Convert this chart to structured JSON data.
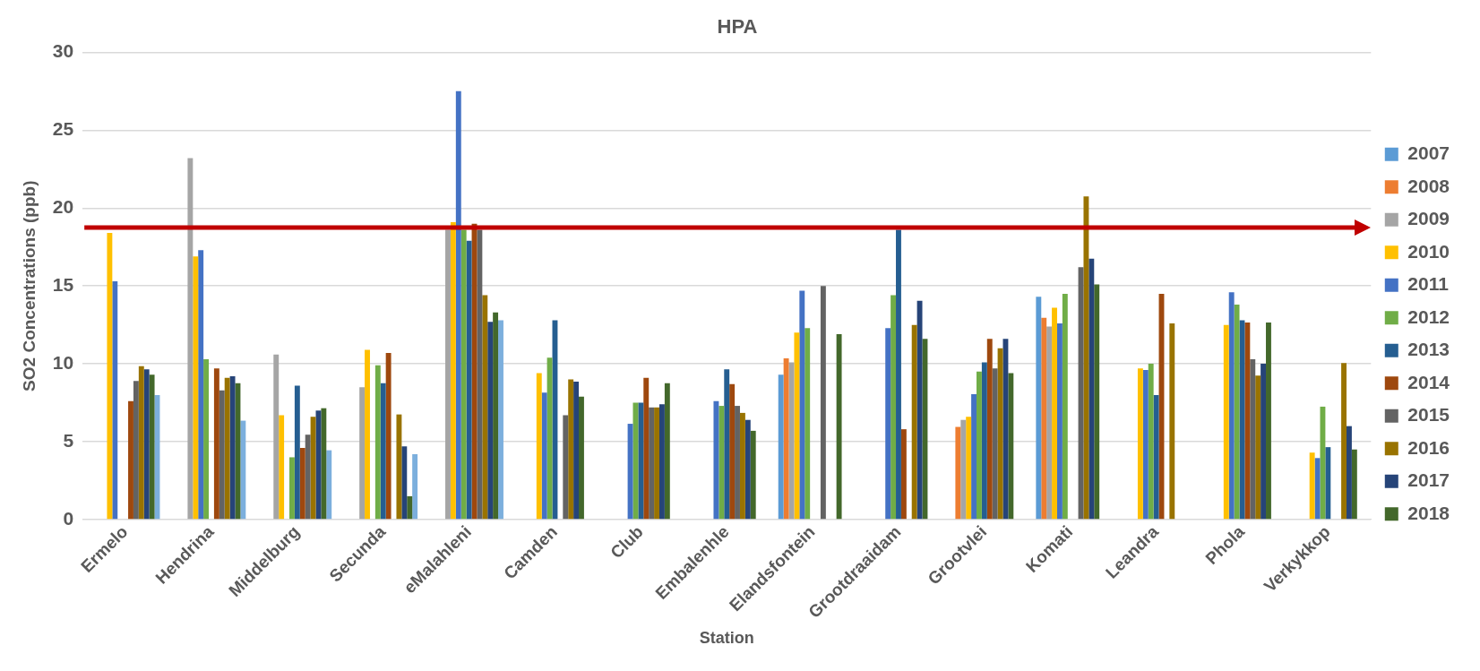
{
  "chart_data": {
    "type": "bar",
    "title": "HPA",
    "xlabel": "Station",
    "ylabel": "SO2 Concentrations (ppb)",
    "categories": [
      "Ermelo",
      "Hendrina",
      "Middelburg",
      "Secunda",
      "eMalahleni",
      "Camden",
      "Club",
      "Embalenhle",
      "Elandsfontein",
      "Grootdraaidam",
      "Grootvlei",
      "Komati",
      "Leandra",
      "Phola",
      "Verkykkop"
    ],
    "series": [
      {
        "name": "2007",
        "color": "#5b9bd5",
        "values": [
          null,
          null,
          null,
          null,
          null,
          null,
          null,
          null,
          9.3,
          null,
          null,
          14.3,
          null,
          null,
          null
        ]
      },
      {
        "name": "2008",
        "color": "#ed7d31",
        "values": [
          null,
          null,
          null,
          null,
          null,
          null,
          null,
          null,
          10.35,
          null,
          5.95,
          12.95,
          null,
          null,
          null
        ]
      },
      {
        "name": "2009",
        "color": "#a5a5a5",
        "values": [
          null,
          23.2,
          10.6,
          8.5,
          18.6,
          null,
          null,
          null,
          10.1,
          null,
          6.4,
          12.4,
          null,
          null,
          null
        ]
      },
      {
        "name": "2010",
        "color": "#ffc000",
        "values": [
          18.4,
          16.9,
          6.7,
          10.9,
          19.1,
          9.4,
          null,
          null,
          12.0,
          null,
          6.6,
          13.6,
          9.7,
          12.5,
          4.3
        ]
      },
      {
        "name": "2011",
        "color": "#4472c4",
        "values": [
          15.3,
          17.3,
          null,
          null,
          27.5,
          8.15,
          6.15,
          7.6,
          14.7,
          12.3,
          8.05,
          12.6,
          9.6,
          14.6,
          3.95
        ]
      },
      {
        "name": "2012",
        "color": "#70ad47",
        "values": [
          null,
          10.3,
          4.0,
          9.9,
          18.6,
          10.4,
          7.5,
          7.3,
          12.3,
          14.4,
          9.5,
          14.5,
          10.0,
          13.8,
          7.25
        ]
      },
      {
        "name": "2013",
        "color": "#255e91",
        "values": [
          null,
          null,
          8.6,
          8.75,
          17.9,
          12.8,
          7.5,
          9.65,
          null,
          18.6,
          10.1,
          null,
          8.0,
          12.8,
          4.65
        ]
      },
      {
        "name": "2014",
        "color": "#9e480e",
        "values": [
          7.6,
          9.7,
          4.6,
          10.7,
          19.0,
          null,
          9.1,
          8.7,
          null,
          5.8,
          11.6,
          null,
          14.5,
          12.65,
          null
        ]
      },
      {
        "name": "2015",
        "color": "#636363",
        "values": [
          8.9,
          8.3,
          5.45,
          null,
          18.6,
          6.7,
          7.2,
          7.3,
          15.0,
          null,
          9.7,
          16.2,
          null,
          10.3,
          null
        ]
      },
      {
        "name": "2016",
        "color": "#997300",
        "values": [
          9.85,
          9.1,
          6.6,
          6.75,
          14.4,
          9.0,
          7.2,
          6.85,
          null,
          12.5,
          11.0,
          20.75,
          12.6,
          9.25,
          10.05
        ]
      },
      {
        "name": "2017",
        "color": "#264478",
        "values": [
          9.65,
          9.2,
          7.0,
          4.7,
          12.7,
          8.85,
          7.4,
          6.4,
          null,
          14.05,
          11.6,
          16.75,
          null,
          10.0,
          6.0
        ]
      },
      {
        "name": "2018",
        "color": "#43682b",
        "values": [
          9.3,
          8.75,
          7.15,
          1.5,
          13.3,
          7.9,
          8.75,
          5.7,
          11.9,
          11.6,
          9.4,
          15.1,
          null,
          12.65,
          4.5
        ]
      },
      {
        "color": "#7cafdd",
        "values": [
          8.0,
          6.35,
          4.45,
          4.2,
          12.8,
          null,
          null,
          null,
          null,
          null,
          null,
          null,
          null,
          null,
          null
        ]
      }
    ],
    "ylim": [
      0,
      30
    ],
    "yticks": [
      0,
      5,
      10,
      15,
      20,
      25,
      30
    ],
    "grid": "y",
    "legend": "right",
    "ref_lines": [
      {
        "axis": "y",
        "value": 18.75,
        "color": "#c00000"
      }
    ]
  }
}
